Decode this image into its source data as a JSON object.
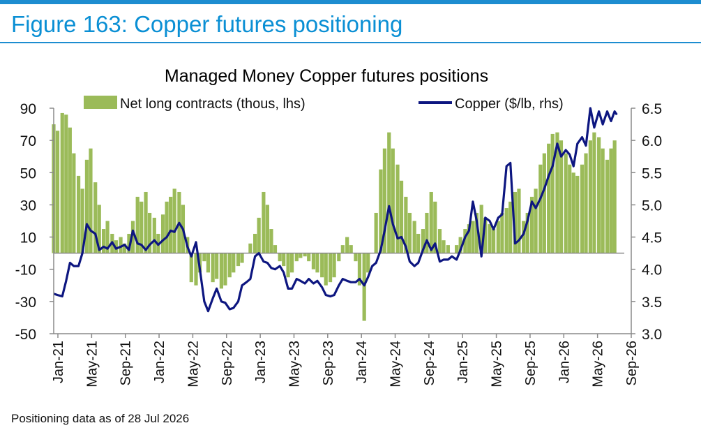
{
  "header": {
    "figure_title": "Figure 163: Copper futures positioning"
  },
  "footnote": "Positioning data as of 28 Jul 2026",
  "colors": {
    "accent": "#0a8fd4",
    "bars": "#9bbb59",
    "line": "#0d1680",
    "axis": "#8a8a8a"
  },
  "chart_data": {
    "type": "bar+line",
    "title": "Managed Money Copper futures positions",
    "x_tick_labels": [
      "Jan-21",
      "May-21",
      "Sep-21",
      "Jan-22",
      "May-22",
      "Sep-22",
      "Jan-23",
      "May-23",
      "Sep-23",
      "Jan-24",
      "May-24",
      "Sep-24",
      "Jan-25",
      "May-25",
      "Sep-25",
      "Jan-26",
      "May-26",
      "Sep-26"
    ],
    "x_range": [
      "2021-01-01",
      "2026-09-01"
    ],
    "legend": {
      "placement": "top",
      "entries": [
        "Net long contracts (thous, lhs)",
        "Copper ($/lb, rhs)"
      ]
    },
    "y_left": {
      "ylim": [
        -50,
        90
      ],
      "ticks": [
        90,
        70,
        50,
        30,
        10,
        -10,
        -30,
        -50
      ]
    },
    "y_right": {
      "ylim": [
        3.0,
        6.5
      ],
      "ticks": [
        "6.5",
        "6.0",
        "5.5",
        "5.0",
        "4.5",
        "4.0",
        "3.5",
        "3.0"
      ]
    },
    "series": [
      {
        "name": "Net long contracts (thous, lhs)",
        "kind": "bar",
        "axis": "left",
        "points": [
          [
            "2021-01-01",
            80
          ],
          [
            "2021-01-15",
            76
          ],
          [
            "2021-02-01",
            87
          ],
          [
            "2021-02-15",
            86
          ],
          [
            "2021-03-01",
            78
          ],
          [
            "2021-03-15",
            62
          ],
          [
            "2021-04-01",
            48
          ],
          [
            "2021-04-15",
            40
          ],
          [
            "2021-05-01",
            58
          ],
          [
            "2021-05-15",
            65
          ],
          [
            "2021-06-01",
            44
          ],
          [
            "2021-06-15",
            30
          ],
          [
            "2021-07-01",
            15
          ],
          [
            "2021-07-15",
            20
          ],
          [
            "2021-08-01",
            12
          ],
          [
            "2021-08-15",
            8
          ],
          [
            "2021-09-01",
            10
          ],
          [
            "2021-09-15",
            6
          ],
          [
            "2021-10-01",
            12
          ],
          [
            "2021-10-15",
            20
          ],
          [
            "2021-11-01",
            35
          ],
          [
            "2021-11-15",
            32
          ],
          [
            "2021-12-01",
            38
          ],
          [
            "2021-12-15",
            25
          ],
          [
            "2022-01-01",
            22
          ],
          [
            "2022-01-15",
            12
          ],
          [
            "2022-02-01",
            24
          ],
          [
            "2022-02-15",
            32
          ],
          [
            "2022-03-01",
            35
          ],
          [
            "2022-03-15",
            40
          ],
          [
            "2022-04-01",
            38
          ],
          [
            "2022-04-15",
            30
          ],
          [
            "2022-05-01",
            10
          ],
          [
            "2022-05-15",
            -18
          ],
          [
            "2022-06-01",
            -20
          ],
          [
            "2022-06-15",
            -12
          ],
          [
            "2022-07-01",
            -5
          ],
          [
            "2022-07-15",
            -12
          ],
          [
            "2022-08-01",
            -18
          ],
          [
            "2022-08-15",
            -16
          ],
          [
            "2022-09-01",
            -22
          ],
          [
            "2022-09-15",
            -20
          ],
          [
            "2022-10-01",
            -15
          ],
          [
            "2022-10-15",
            -12
          ],
          [
            "2022-11-01",
            -8
          ],
          [
            "2022-11-15",
            -6
          ],
          [
            "2022-12-01",
            0
          ],
          [
            "2022-12-15",
            6
          ],
          [
            "2023-01-01",
            12
          ],
          [
            "2023-01-15",
            22
          ],
          [
            "2023-02-01",
            38
          ],
          [
            "2023-02-15",
            30
          ],
          [
            "2023-03-01",
            15
          ],
          [
            "2023-03-15",
            5
          ],
          [
            "2023-04-01",
            -5
          ],
          [
            "2023-04-15",
            -8
          ],
          [
            "2023-05-01",
            -15
          ],
          [
            "2023-05-15",
            -12
          ],
          [
            "2023-06-01",
            -5
          ],
          [
            "2023-06-15",
            -3
          ],
          [
            "2023-07-01",
            -2
          ],
          [
            "2023-07-15",
            -5
          ],
          [
            "2023-08-01",
            -10
          ],
          [
            "2023-08-15",
            -12
          ],
          [
            "2023-09-01",
            -15
          ],
          [
            "2023-09-15",
            -20
          ],
          [
            "2023-10-01",
            -18
          ],
          [
            "2023-10-15",
            -15
          ],
          [
            "2023-11-01",
            -5
          ],
          [
            "2023-11-15",
            5
          ],
          [
            "2023-12-01",
            10
          ],
          [
            "2023-12-15",
            5
          ],
          [
            "2024-01-01",
            -5
          ],
          [
            "2024-01-15",
            -20
          ],
          [
            "2024-02-01",
            -42
          ],
          [
            "2024-02-15",
            -12
          ],
          [
            "2024-03-01",
            0
          ],
          [
            "2024-03-15",
            25
          ],
          [
            "2024-04-01",
            52
          ],
          [
            "2024-04-15",
            65
          ],
          [
            "2024-05-01",
            75
          ],
          [
            "2024-05-15",
            65
          ],
          [
            "2024-06-01",
            55
          ],
          [
            "2024-06-15",
            45
          ],
          [
            "2024-07-01",
            35
          ],
          [
            "2024-07-15",
            25
          ],
          [
            "2024-08-01",
            20
          ],
          [
            "2024-08-15",
            12
          ],
          [
            "2024-09-01",
            15
          ],
          [
            "2024-09-15",
            25
          ],
          [
            "2024-10-01",
            38
          ],
          [
            "2024-10-15",
            32
          ],
          [
            "2024-11-01",
            15
          ],
          [
            "2024-11-15",
            8
          ],
          [
            "2024-12-01",
            5
          ],
          [
            "2024-12-15",
            0
          ],
          [
            "2025-01-01",
            5
          ],
          [
            "2025-01-15",
            10
          ],
          [
            "2025-02-01",
            15
          ],
          [
            "2025-02-15",
            18
          ],
          [
            "2025-03-01",
            20
          ],
          [
            "2025-03-15",
            25
          ],
          [
            "2025-04-01",
            30
          ],
          [
            "2025-04-15",
            22
          ],
          [
            "2025-05-01",
            18
          ],
          [
            "2025-05-15",
            15
          ],
          [
            "2025-06-01",
            20
          ],
          [
            "2025-06-15",
            25
          ],
          [
            "2025-07-01",
            28
          ],
          [
            "2025-07-15",
            32
          ],
          [
            "2025-08-01",
            38
          ],
          [
            "2025-08-15",
            40
          ],
          [
            "2025-09-01",
            20
          ],
          [
            "2025-09-15",
            25
          ],
          [
            "2025-10-01",
            35
          ],
          [
            "2025-10-15",
            40
          ],
          [
            "2025-11-01",
            55
          ],
          [
            "2025-11-15",
            62
          ],
          [
            "2025-12-01",
            68
          ],
          [
            "2025-12-15",
            74
          ],
          [
            "2026-01-01",
            75
          ],
          [
            "2026-01-15",
            70
          ],
          [
            "2026-02-01",
            62
          ],
          [
            "2026-02-15",
            55
          ],
          [
            "2026-03-01",
            50
          ],
          [
            "2026-03-15",
            48
          ],
          [
            "2026-04-01",
            55
          ],
          [
            "2026-04-15",
            62
          ],
          [
            "2026-05-01",
            70
          ],
          [
            "2026-05-15",
            75
          ],
          [
            "2026-06-01",
            72
          ],
          [
            "2026-06-15",
            65
          ],
          [
            "2026-07-01",
            58
          ],
          [
            "2026-07-15",
            65
          ],
          [
            "2026-07-28",
            70
          ]
        ]
      },
      {
        "name": "Copper ($/lb, rhs)",
        "kind": "line",
        "axis": "right",
        "points": [
          [
            "2021-01-01",
            3.62
          ],
          [
            "2021-01-15",
            3.6
          ],
          [
            "2021-02-01",
            3.58
          ],
          [
            "2021-02-15",
            3.82
          ],
          [
            "2021-03-01",
            4.1
          ],
          [
            "2021-03-15",
            4.05
          ],
          [
            "2021-04-01",
            4.05
          ],
          [
            "2021-04-15",
            4.25
          ],
          [
            "2021-05-01",
            4.7
          ],
          [
            "2021-05-15",
            4.6
          ],
          [
            "2021-06-01",
            4.55
          ],
          [
            "2021-06-15",
            4.3
          ],
          [
            "2021-07-01",
            4.35
          ],
          [
            "2021-07-15",
            4.32
          ],
          [
            "2021-08-01",
            4.42
          ],
          [
            "2021-08-15",
            4.32
          ],
          [
            "2021-09-01",
            4.35
          ],
          [
            "2021-09-15",
            4.38
          ],
          [
            "2021-10-01",
            4.3
          ],
          [
            "2021-10-15",
            4.6
          ],
          [
            "2021-11-01",
            4.4
          ],
          [
            "2021-11-15",
            4.38
          ],
          [
            "2021-12-01",
            4.3
          ],
          [
            "2021-12-15",
            4.38
          ],
          [
            "2022-01-01",
            4.45
          ],
          [
            "2022-01-15",
            4.38
          ],
          [
            "2022-02-01",
            4.45
          ],
          [
            "2022-02-15",
            4.5
          ],
          [
            "2022-03-01",
            4.6
          ],
          [
            "2022-03-15",
            4.58
          ],
          [
            "2022-04-01",
            4.72
          ],
          [
            "2022-04-15",
            4.62
          ],
          [
            "2022-05-01",
            4.35
          ],
          [
            "2022-05-15",
            4.2
          ],
          [
            "2022-06-01",
            4.42
          ],
          [
            "2022-06-15",
            4.0
          ],
          [
            "2022-07-01",
            3.5
          ],
          [
            "2022-07-15",
            3.35
          ],
          [
            "2022-08-01",
            3.55
          ],
          [
            "2022-08-15",
            3.7
          ],
          [
            "2022-09-01",
            3.5
          ],
          [
            "2022-09-15",
            3.48
          ],
          [
            "2022-10-01",
            3.38
          ],
          [
            "2022-10-15",
            3.4
          ],
          [
            "2022-11-01",
            3.5
          ],
          [
            "2022-11-15",
            3.75
          ],
          [
            "2022-12-01",
            3.8
          ],
          [
            "2022-12-15",
            3.85
          ],
          [
            "2023-01-01",
            4.2
          ],
          [
            "2023-01-15",
            4.25
          ],
          [
            "2023-02-01",
            4.12
          ],
          [
            "2023-02-15",
            4.1
          ],
          [
            "2023-03-01",
            4.02
          ],
          [
            "2023-03-15",
            4.0
          ],
          [
            "2023-04-01",
            4.05
          ],
          [
            "2023-04-15",
            3.95
          ],
          [
            "2023-05-01",
            3.7
          ],
          [
            "2023-05-15",
            3.7
          ],
          [
            "2023-06-01",
            3.85
          ],
          [
            "2023-06-15",
            3.82
          ],
          [
            "2023-07-01",
            3.78
          ],
          [
            "2023-07-15",
            3.85
          ],
          [
            "2023-08-01",
            3.78
          ],
          [
            "2023-08-15",
            3.82
          ],
          [
            "2023-09-01",
            3.72
          ],
          [
            "2023-09-15",
            3.6
          ],
          [
            "2023-10-01",
            3.58
          ],
          [
            "2023-10-15",
            3.6
          ],
          [
            "2023-11-01",
            3.75
          ],
          [
            "2023-11-15",
            3.85
          ],
          [
            "2023-12-01",
            3.82
          ],
          [
            "2023-12-15",
            3.8
          ],
          [
            "2024-01-01",
            3.8
          ],
          [
            "2024-01-15",
            3.85
          ],
          [
            "2024-02-01",
            3.75
          ],
          [
            "2024-02-15",
            3.88
          ],
          [
            "2024-03-01",
            4.05
          ],
          [
            "2024-03-15",
            4.1
          ],
          [
            "2024-04-01",
            4.3
          ],
          [
            "2024-04-15",
            4.6
          ],
          [
            "2024-05-01",
            4.98
          ],
          [
            "2024-05-15",
            4.7
          ],
          [
            "2024-06-01",
            4.48
          ],
          [
            "2024-06-15",
            4.5
          ],
          [
            "2024-07-01",
            4.35
          ],
          [
            "2024-07-15",
            4.12
          ],
          [
            "2024-08-01",
            4.05
          ],
          [
            "2024-08-15",
            4.1
          ],
          [
            "2024-09-01",
            4.3
          ],
          [
            "2024-09-15",
            4.45
          ],
          [
            "2024-10-01",
            4.3
          ],
          [
            "2024-10-15",
            4.4
          ],
          [
            "2024-11-01",
            4.12
          ],
          [
            "2024-11-15",
            4.15
          ],
          [
            "2024-12-01",
            4.15
          ],
          [
            "2024-12-15",
            4.2
          ],
          [
            "2025-01-01",
            4.15
          ],
          [
            "2025-01-15",
            4.3
          ],
          [
            "2025-02-01",
            4.5
          ],
          [
            "2025-02-15",
            4.6
          ],
          [
            "2025-03-01",
            5.05
          ],
          [
            "2025-03-15",
            4.75
          ],
          [
            "2025-04-01",
            4.2
          ],
          [
            "2025-04-15",
            4.8
          ],
          [
            "2025-05-01",
            4.75
          ],
          [
            "2025-05-15",
            4.62
          ],
          [
            "2025-06-01",
            4.8
          ],
          [
            "2025-06-15",
            4.85
          ],
          [
            "2025-07-01",
            5.6
          ],
          [
            "2025-07-15",
            5.65
          ],
          [
            "2025-08-01",
            4.4
          ],
          [
            "2025-08-15",
            4.45
          ],
          [
            "2025-09-01",
            4.55
          ],
          [
            "2025-09-15",
            4.75
          ],
          [
            "2025-10-01",
            5.05
          ],
          [
            "2025-10-15",
            4.95
          ],
          [
            "2025-11-01",
            5.1
          ],
          [
            "2025-11-15",
            5.25
          ],
          [
            "2025-12-01",
            5.45
          ],
          [
            "2025-12-15",
            5.6
          ],
          [
            "2026-01-01",
            5.95
          ],
          [
            "2026-01-15",
            5.75
          ],
          [
            "2026-02-01",
            5.85
          ],
          [
            "2026-02-15",
            5.78
          ],
          [
            "2026-03-01",
            5.6
          ],
          [
            "2026-03-15",
            5.95
          ],
          [
            "2026-04-01",
            6.05
          ],
          [
            "2026-04-15",
            5.92
          ],
          [
            "2026-05-01",
            6.5
          ],
          [
            "2026-05-15",
            6.2
          ],
          [
            "2026-06-01",
            6.45
          ],
          [
            "2026-06-15",
            6.25
          ],
          [
            "2026-07-01",
            6.45
          ],
          [
            "2026-07-15",
            6.3
          ],
          [
            "2026-07-28",
            6.45
          ],
          [
            "2026-08-05",
            6.4
          ]
        ]
      }
    ]
  }
}
